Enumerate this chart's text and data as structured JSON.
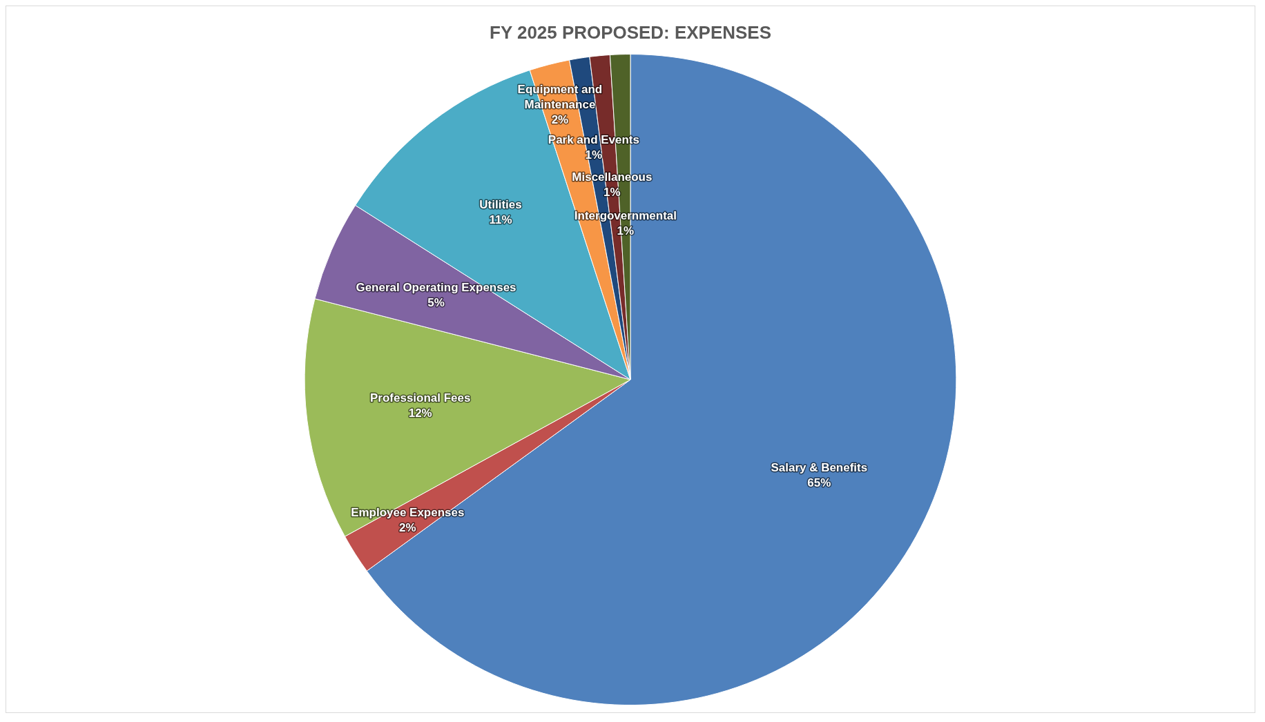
{
  "chart_data": {
    "type": "pie",
    "title": "FY 2025 PROPOSED: EXPENSES",
    "categories": [
      "Salary & Benefits",
      "Employee Expenses",
      "Professional Fees",
      "General Operating Expenses",
      "Utilities",
      "Equipment and Maintenance",
      "Park and Events",
      "Miscellaneous",
      "Intergovernmental"
    ],
    "values": [
      65,
      2,
      12,
      5,
      11,
      2,
      1,
      1,
      1
    ],
    "value_labels": [
      "65%",
      "2%",
      "12%",
      "5%",
      "11%",
      "2%",
      "1%",
      "1%",
      "1%"
    ],
    "colors": [
      "#4f81bd",
      "#c0504d",
      "#9bbb59",
      "#8064a2",
      "#4bacc6",
      "#f79646",
      "#1f497d",
      "#772c2a",
      "#4f6228"
    ],
    "legend": false
  }
}
